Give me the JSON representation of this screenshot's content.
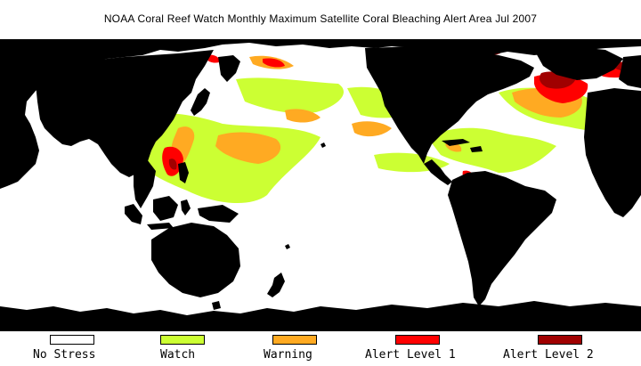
{
  "title": "NOAA Coral Reef Watch Monthly Maximum Satellite Coral Bleaching Alert Area    Jul 2007",
  "colors": {
    "ocean": "#ffffff",
    "land": "#000000",
    "no_stress": "#ffffff",
    "watch": "#ccff33",
    "warning": "#ffaa22",
    "alert1": "#ff0000",
    "alert2": "#a00000"
  },
  "legend": [
    {
      "key": "no_stress",
      "label": "No Stress",
      "color": "#ffffff"
    },
    {
      "key": "watch",
      "label": "Watch",
      "color": "#ccff33"
    },
    {
      "key": "warning",
      "label": "Warning",
      "color": "#ffaa22"
    },
    {
      "key": "alert1",
      "label": "Alert Level 1",
      "color": "#ff0000"
    },
    {
      "key": "alert2",
      "label": "Alert Level 2",
      "color": "#a00000"
    }
  ]
}
